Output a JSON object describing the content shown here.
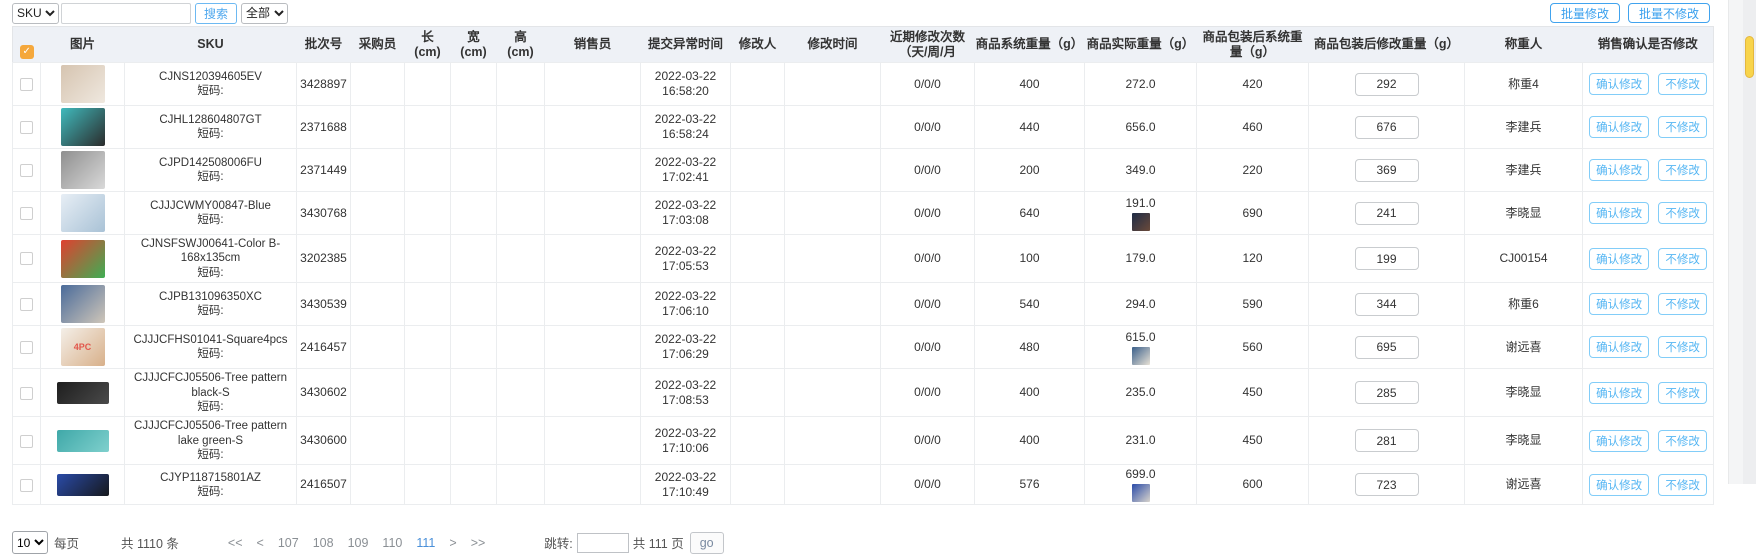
{
  "colors": {
    "accent_blue": "#3aa0ee",
    "action_blue": "#55b6f3",
    "header_bg": "#eef1f6",
    "select_all_orange": "#f5a83c",
    "current_page_blue": "#4a90d9",
    "scroll_thumb_yellow": "#f8d44b"
  },
  "toolbar": {
    "sku_select_value": "SKU",
    "search_input_value": "",
    "search_button": "搜索",
    "filter_select_value": "全部",
    "batch_modify": "批量修改",
    "batch_no_modify": "批量不修改"
  },
  "table": {
    "select_all_icon": "check-icon",
    "short_code_label": "短码:",
    "columns": [
      "图片",
      "SKU",
      "批次号",
      "采购员",
      "长\n(cm)",
      "宽\n(cm)",
      "高\n(cm)",
      "销售员",
      "提交异常时间",
      "修改人",
      "修改时间",
      "近期修改次数（天/周/月",
      "商品系统重量（g）",
      "商品实际重量（g）",
      "商品包装后系统重量（g）",
      "商品包装后修改重量（g）",
      "称重人",
      "销售确认是否修改"
    ],
    "actions": {
      "confirm": "确认修改",
      "reject": "不修改"
    },
    "rows": [
      {
        "sku": "CJNS120394605EV",
        "batch": "3428897",
        "purchaser": "",
        "length": "",
        "width": "",
        "height": "",
        "salesperson": "",
        "submit_date": "2022-03-22",
        "submit_time": "16:58:20",
        "modifier": "",
        "modify_time": "",
        "recent": "0/0/0",
        "system_weight": "400",
        "actual_weight": "272.0",
        "packed_system_weight": "420",
        "packed_modify_weight": "292",
        "weigher": "称重4",
        "image": {
          "name": "plush-slippers-photo",
          "shape": "square",
          "colors": [
            "#d6c4b0",
            "#efe8df"
          ],
          "text": ""
        }
      },
      {
        "sku": "CJHL128604807GT",
        "batch": "2371688",
        "purchaser": "",
        "length": "",
        "width": "",
        "height": "",
        "salesperson": "",
        "submit_date": "2022-03-22",
        "submit_time": "16:58:24",
        "modifier": "",
        "modify_time": "",
        "recent": "0/0/0",
        "system_weight": "440",
        "actual_weight": "656.0",
        "packed_system_weight": "460",
        "packed_modify_weight": "676",
        "weigher": "李建兵",
        "image": {
          "name": "dark-apparel-photo",
          "shape": "square",
          "colors": [
            "#40babd",
            "#2b2b2b"
          ],
          "text": ""
        }
      },
      {
        "sku": "CJPD142508006FU",
        "batch": "2371449",
        "purchaser": "",
        "length": "",
        "width": "",
        "height": "",
        "salesperson": "",
        "submit_date": "2022-03-22",
        "submit_time": "17:02:41",
        "modifier": "",
        "modify_time": "",
        "recent": "0/0/0",
        "system_weight": "200",
        "actual_weight": "349.0",
        "packed_system_weight": "220",
        "packed_modify_weight": "369",
        "weigher": "李建兵",
        "image": {
          "name": "gray-stones-photo",
          "shape": "square",
          "colors": [
            "#8f8f8f",
            "#d9d9d9"
          ],
          "text": ""
        }
      },
      {
        "sku": "CJJJCWMY00847-Blue",
        "batch": "3430768",
        "purchaser": "",
        "length": "",
        "width": "",
        "height": "",
        "salesperson": "",
        "submit_date": "2022-03-22",
        "submit_time": "17:03:08",
        "modifier": "",
        "modify_time": "",
        "recent": "0/0/0",
        "system_weight": "640",
        "actual_weight": "191.0",
        "packed_system_weight": "690",
        "packed_modify_weight": "241",
        "weigher": "李晓显",
        "image": {
          "name": "white-cat-device-photo",
          "shape": "square",
          "colors": [
            "#e7eef5",
            "#a9c2d6"
          ],
          "text": ""
        },
        "actual_thumb_colors": [
          "#1d2b45",
          "#6b4a3a"
        ]
      },
      {
        "sku": "CJNSFSWJ00641-Color B-168x135cm",
        "batch": "3202385",
        "purchaser": "",
        "length": "",
        "width": "",
        "height": "",
        "salesperson": "",
        "submit_date": "2022-03-22",
        "submit_time": "17:05:53",
        "modifier": "",
        "modify_time": "",
        "recent": "0/0/0",
        "system_weight": "100",
        "actual_weight": "179.0",
        "packed_system_weight": "120",
        "packed_modify_weight": "199",
        "weigher": "CJ00154",
        "image": {
          "name": "rainbow-butterfly-cape-photo",
          "shape": "square",
          "colors": [
            "#e0402f",
            "#3fae54"
          ],
          "text": ""
        }
      },
      {
        "sku": "CJPB131096350XC",
        "batch": "3430539",
        "purchaser": "",
        "length": "",
        "width": "",
        "height": "",
        "salesperson": "",
        "submit_date": "2022-03-22",
        "submit_time": "17:06:10",
        "modifier": "",
        "modify_time": "",
        "recent": "0/0/0",
        "system_weight": "540",
        "actual_weight": "294.0",
        "packed_system_weight": "590",
        "packed_modify_weight": "344",
        "weigher": "称重6",
        "image": {
          "name": "blue-shoes-photo",
          "shape": "square",
          "colors": [
            "#4a6b9a",
            "#cfc6b9"
          ],
          "text": ""
        }
      },
      {
        "sku": "CJJJCFHS01041-Square4pcs",
        "batch": "2416457",
        "purchaser": "",
        "length": "",
        "width": "",
        "height": "",
        "salesperson": "",
        "submit_date": "2022-03-22",
        "submit_time": "17:06:29",
        "modifier": "",
        "modify_time": "",
        "recent": "0/0/0",
        "system_weight": "480",
        "actual_weight": "615.0",
        "packed_system_weight": "560",
        "packed_modify_weight": "695",
        "weigher": "谢远喜",
        "image": {
          "name": "square-4pc-package-photo",
          "shape": "square",
          "colors": [
            "#f4efe8",
            "#d8b08a"
          ],
          "text": "4PC"
        },
        "actual_thumb_colors": [
          "#3a5f8a",
          "#e8e2d6"
        ]
      },
      {
        "sku": "CJJJCFCJ05506-Tree pattern black-S",
        "batch": "3430602",
        "purchaser": "",
        "length": "",
        "width": "",
        "height": "",
        "salesperson": "",
        "submit_date": "2022-03-22",
        "submit_time": "17:08:53",
        "modifier": "",
        "modify_time": "",
        "recent": "0/0/0",
        "system_weight": "400",
        "actual_weight": "235.0",
        "packed_system_weight": "450",
        "packed_modify_weight": "285",
        "weigher": "李晓显",
        "image": {
          "name": "black-case-photo",
          "shape": "wide",
          "colors": [
            "#1e1e1e",
            "#4a4a4a"
          ],
          "text": ""
        }
      },
      {
        "sku": "CJJJCFCJ05506-Tree pattern lake green-S",
        "batch": "3430600",
        "purchaser": "",
        "length": "",
        "width": "",
        "height": "",
        "salesperson": "",
        "submit_date": "2022-03-22",
        "submit_time": "17:10:06",
        "modifier": "",
        "modify_time": "",
        "recent": "0/0/0",
        "system_weight": "400",
        "actual_weight": "231.0",
        "packed_system_weight": "450",
        "packed_modify_weight": "281",
        "weigher": "李晓显",
        "image": {
          "name": "teal-case-photo",
          "shape": "wide",
          "colors": [
            "#3fa8a8",
            "#7fd0cd"
          ],
          "text": ""
        }
      },
      {
        "sku": "CJYP118715801AZ",
        "batch": "2416507",
        "purchaser": "",
        "length": "",
        "width": "",
        "height": "",
        "salesperson": "",
        "submit_date": "2022-03-22",
        "submit_time": "17:10:49",
        "modifier": "",
        "modify_time": "",
        "recent": "0/0/0",
        "system_weight": "576",
        "actual_weight": "699.0",
        "packed_system_weight": "600",
        "packed_modify_weight": "723",
        "weigher": "谢远喜",
        "image": {
          "name": "blue-speaker-photo",
          "shape": "wide",
          "colors": [
            "#2a4ba8",
            "#16181c"
          ],
          "text": ""
        },
        "actual_thumb_colors": [
          "#2a4ba8",
          "#d8d4cc"
        ]
      }
    ]
  },
  "pagination": {
    "per_page_value": "10",
    "per_page_label": "每页",
    "total_label": "共 1110 条",
    "pager": [
      "<<",
      "<",
      "107",
      "108",
      "109",
      "110",
      "111",
      ">",
      ">>"
    ],
    "current_page": "111",
    "jump_label": "跳转:",
    "jump_input_value": "",
    "total_pages_label": "共 111 页",
    "go_button": "go"
  }
}
